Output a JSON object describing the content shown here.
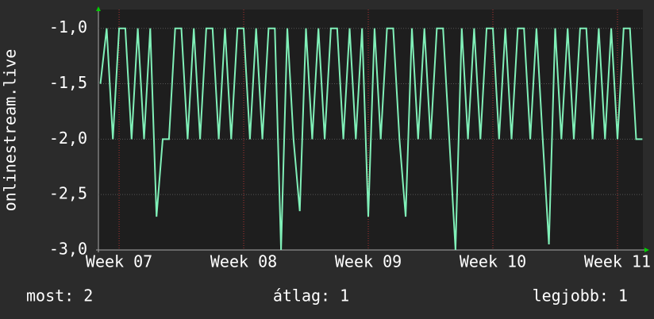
{
  "chart_data": {
    "type": "line",
    "ylabel": "onlinestream.live",
    "x": [
      6.85,
      6.9,
      6.95,
      7.0,
      7.05,
      7.1,
      7.15,
      7.2,
      7.25,
      7.3,
      7.35,
      7.4,
      7.45,
      7.5,
      7.55,
      7.6,
      7.65,
      7.7,
      7.75,
      7.8,
      7.85,
      7.9,
      7.95,
      8.0,
      8.05,
      8.1,
      8.15,
      8.2,
      8.25,
      8.3,
      8.35,
      8.4,
      8.45,
      8.5,
      8.55,
      8.6,
      8.65,
      8.7,
      8.75,
      8.8,
      8.85,
      8.9,
      8.95,
      9.0,
      9.05,
      9.1,
      9.15,
      9.2,
      9.25,
      9.3,
      9.35,
      9.4,
      9.45,
      9.5,
      9.55,
      9.6,
      9.65,
      9.7,
      9.75,
      9.8,
      9.85,
      9.9,
      9.95,
      10.0,
      10.05,
      10.1,
      10.15,
      10.2,
      10.25,
      10.3,
      10.35,
      10.4,
      10.45,
      10.5,
      10.55,
      10.6,
      10.65,
      10.7,
      10.75,
      10.8,
      10.85,
      10.9,
      10.95,
      11.0,
      11.05,
      11.1,
      11.15,
      11.2
    ],
    "series": [
      {
        "color": "#80f0b8",
        "values": [
          -1.5,
          -1,
          -2,
          -1,
          -1,
          -2,
          -1,
          -2,
          -1,
          -2.7,
          -2,
          -2,
          -1,
          -1,
          -2,
          -1,
          -2,
          -1,
          -1,
          -2,
          -1,
          -2,
          -1,
          -1,
          -2,
          -1,
          -2,
          -1,
          -1,
          -3,
          -1,
          -2,
          -2.65,
          -1,
          -2,
          -1,
          -2,
          -1,
          -1,
          -2,
          -1,
          -2,
          -1,
          -2.7,
          -1,
          -2,
          -1,
          -1,
          -2,
          -2.7,
          -1,
          -2,
          -1,
          -2,
          -1,
          -1,
          -2,
          -3,
          -1,
          -2,
          -1,
          -2,
          -1,
          -1,
          -2,
          -1,
          -2,
          -1,
          -1,
          -2,
          -1,
          -2,
          -2.95,
          -1,
          -2,
          -1,
          -2,
          -1,
          -1,
          -2,
          -1,
          -2,
          -1,
          -2,
          -1,
          -1,
          -2,
          -2
        ]
      }
    ],
    "xlim": [
      6.834,
      11.204
    ],
    "xticks": [
      {
        "value": 7,
        "label": "Week 07"
      },
      {
        "value": 8,
        "label": "Week 08"
      },
      {
        "value": 9,
        "label": "Week 09"
      },
      {
        "value": 10,
        "label": "Week 10"
      },
      {
        "value": 11,
        "label": "Week 11"
      }
    ],
    "ylim": [
      -3,
      -0.83
    ],
    "yticks": [
      {
        "value": -1,
        "label": "-1,0"
      },
      {
        "value": -1.5,
        "label": "-1,5"
      },
      {
        "value": -2,
        "label": "-2,0"
      },
      {
        "value": -2.5,
        "label": "-2,5"
      },
      {
        "value": -3,
        "label": "-3,0"
      }
    ],
    "grid": true,
    "stats": [
      "most: 2",
      "átlag: 1",
      "legjobb: 1"
    ]
  }
}
